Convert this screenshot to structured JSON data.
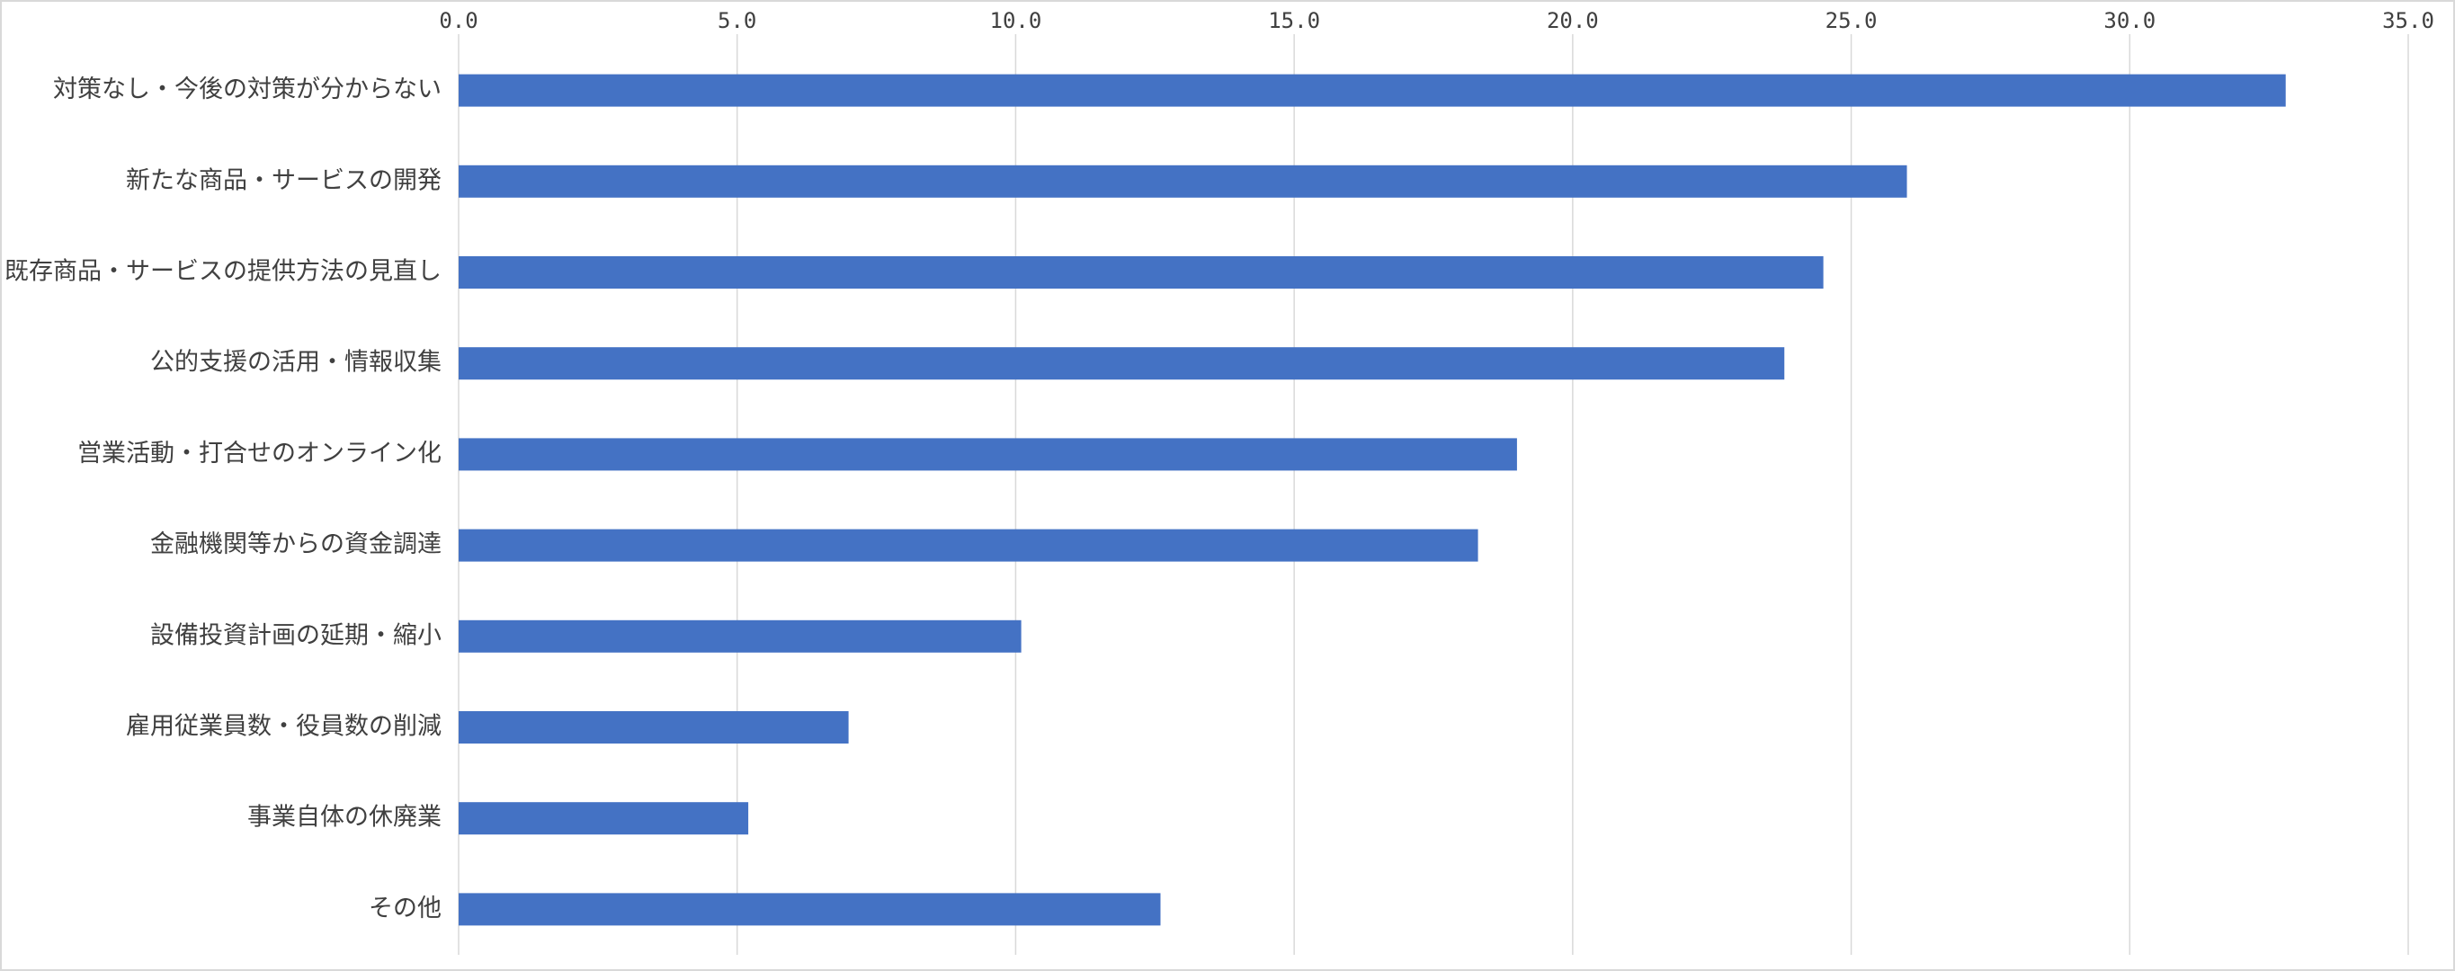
{
  "chart_data": {
    "type": "barh",
    "categories": [
      "対策なし・今後の対策が分からない",
      "新たな商品・サービスの開発",
      "既存商品・サービスの提供方法の見直し",
      "公的支援の活用・情報収集",
      "営業活動・打合せのオンライン化",
      "金融機関等からの資金調達",
      "設備投資計画の延期・縮小",
      "雇用従業員数・役員数の削減",
      "事業自体の休廃業",
      "その他"
    ],
    "values": [
      32.8,
      26.0,
      24.5,
      23.8,
      19.0,
      18.3,
      10.1,
      7.0,
      5.2,
      12.6
    ],
    "color": "#4472c4",
    "xlim": [
      0,
      35
    ],
    "xticks": [
      {
        "value": 0,
        "label": "0.0"
      },
      {
        "value": 5,
        "label": "5.0"
      },
      {
        "value": 10,
        "label": "10.0"
      },
      {
        "value": 15,
        "label": "15.0"
      },
      {
        "value": 20,
        "label": "20.0"
      },
      {
        "value": 25,
        "label": "25.0"
      },
      {
        "value": 30,
        "label": "30.0"
      },
      {
        "value": 35,
        "label": "35.0"
      }
    ],
    "grid": true
  }
}
